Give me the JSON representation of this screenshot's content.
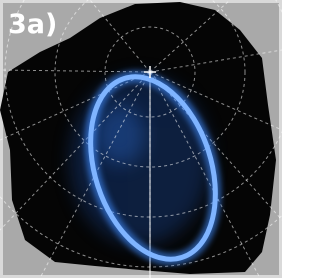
{
  "label": "3a)"
}
